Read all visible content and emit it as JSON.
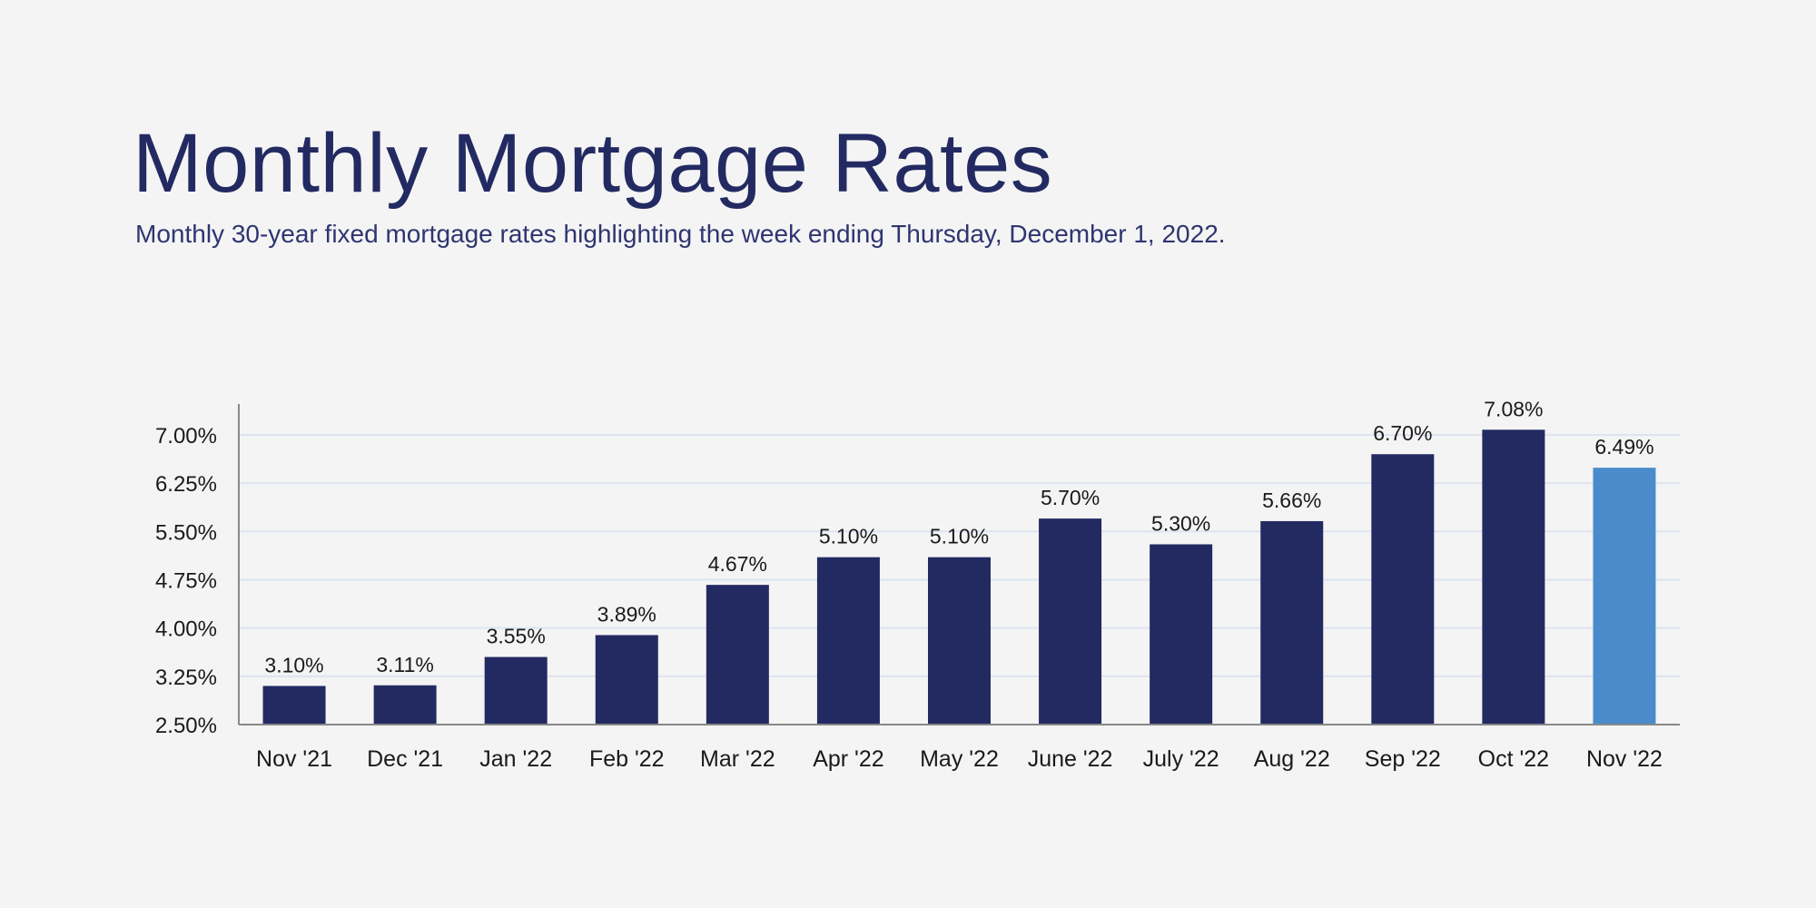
{
  "header": {
    "title": "Monthly Mortgage Rates",
    "subtitle": "Monthly 30-year fixed mortgage rates highlighting the week ending Thursday, December 1, 2022."
  },
  "chart_data": {
    "type": "bar",
    "title": "Monthly Mortgage Rates",
    "subtitle": "Monthly 30-year fixed mortgage rates highlighting the week ending Thursday, December 1, 2022.",
    "categories": [
      "Nov '21",
      "Dec '21",
      "Jan '22",
      "Feb '22",
      "Mar '22",
      "Apr '22",
      "May '22",
      "June '22",
      "July '22",
      "Aug '22",
      "Sep '22",
      "Oct '22",
      "Nov '22"
    ],
    "values": [
      3.1,
      3.11,
      3.55,
      3.89,
      4.67,
      5.1,
      5.1,
      5.7,
      5.3,
      5.66,
      6.7,
      7.08,
      6.49
    ],
    "data_labels": [
      "3.10%",
      "3.11%",
      "3.55%",
      "3.89%",
      "4.67%",
      "5.10%",
      "5.10%",
      "5.70%",
      "5.30%",
      "5.66%",
      "6.70%",
      "7.08%",
      "6.49%"
    ],
    "y_ticks": [
      2.5,
      3.25,
      4.0,
      4.75,
      5.5,
      6.25,
      7.0
    ],
    "y_tick_labels": [
      "2.50%",
      "3.25%",
      "4.00%",
      "4.75%",
      "5.50%",
      "6.25%",
      "7.00%"
    ],
    "ylim": [
      2.5,
      7.5
    ],
    "xlabel": "",
    "ylabel": "",
    "grid": "horizontal",
    "legend": "none",
    "colors": {
      "bar": "#232a62",
      "highlight_bar": "#4a8ccb",
      "highlight_category": "Nov '22",
      "grid": "#dde4f0",
      "axis": "#888888"
    }
  }
}
